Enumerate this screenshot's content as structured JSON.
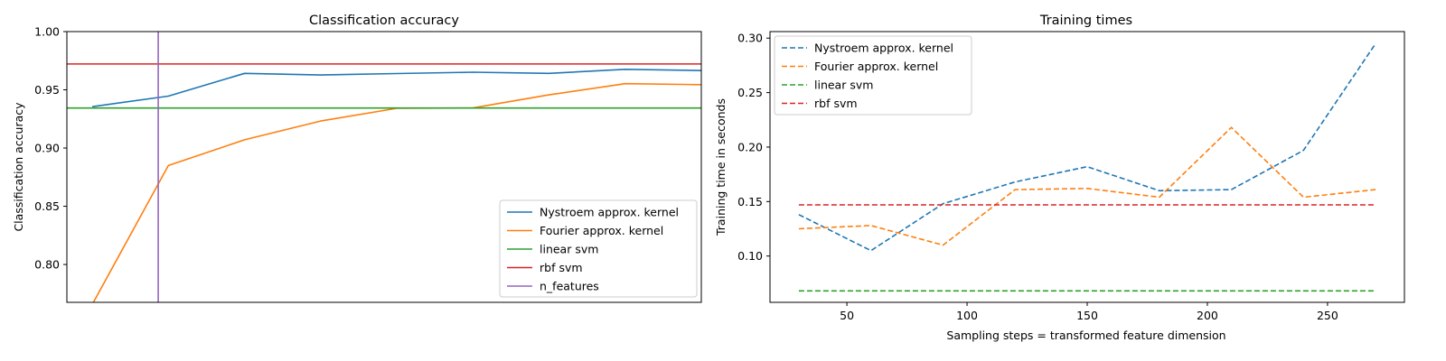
{
  "chart_data": [
    {
      "type": "line",
      "title": "Classification accuracy",
      "xlabel": "",
      "ylabel": "Classification accuracy",
      "xlim": [
        20,
        270
      ],
      "ylim": [
        0.7675,
        1.0
      ],
      "yticks": [
        0.8,
        0.85,
        0.9,
        0.95,
        1.0
      ],
      "ytick_labels": [
        "0.80",
        "0.85",
        "0.90",
        "0.95",
        "1.00"
      ],
      "x": [
        30,
        60,
        90,
        120,
        150,
        180,
        210,
        240,
        270
      ],
      "grid": false,
      "legend_position": "lower-right",
      "series": [
        {
          "name": "Nystroem approx. kernel",
          "style": "solid",
          "color": "#1f77b4",
          "values": [
            0.9355,
            0.9446,
            0.9641,
            0.9627,
            0.964,
            0.9651,
            0.9641,
            0.9676,
            0.9665
          ]
        },
        {
          "name": "Fourier approx. kernel",
          "style": "solid",
          "color": "#ff7f0e",
          "values": [
            0.7657,
            0.885,
            0.9071,
            0.9232,
            0.9341,
            0.9344,
            0.9457,
            0.9553,
            0.9544
          ]
        },
        {
          "name": "linear svm",
          "style": "solid",
          "color": "#2ca02c",
          "values": [
            0.9344,
            0.9344,
            0.9344,
            0.9344,
            0.9344,
            0.9344,
            0.9344,
            0.9344,
            0.9344
          ]
        },
        {
          "name": "rbf svm",
          "style": "solid",
          "color": "#d62728",
          "values": [
            0.9722,
            0.9722,
            0.9722,
            0.9722,
            0.9722,
            0.9722,
            0.9722,
            0.9722,
            0.9722
          ]
        }
      ],
      "vlines": [
        {
          "name": "n_features",
          "x": 56,
          "color": "#9467bd"
        }
      ]
    },
    {
      "type": "line",
      "title": "Training times",
      "xlabel": "Sampling steps = transformed feature dimension",
      "ylabel": "Training time in seconds",
      "xlim": [
        18,
        282
      ],
      "ylim": [
        0.0575,
        0.306
      ],
      "xticks": [
        50,
        100,
        150,
        200,
        250
      ],
      "xtick_labels": [
        "50",
        "100",
        "150",
        "200",
        "250"
      ],
      "yticks": [
        0.1,
        0.15,
        0.2,
        0.25,
        0.3
      ],
      "ytick_labels": [
        "0.10",
        "0.15",
        "0.20",
        "0.25",
        "0.30"
      ],
      "x": [
        30,
        60,
        90,
        120,
        150,
        180,
        210,
        240,
        270
      ],
      "grid": false,
      "legend_position": "upper-left",
      "series": [
        {
          "name": "Nystroem approx. kernel",
          "style": "dashed",
          "color": "#1f77b4",
          "values": [
            0.138,
            0.105,
            0.148,
            0.168,
            0.182,
            0.16,
            0.161,
            0.197,
            0.295
          ]
        },
        {
          "name": "Fourier approx. kernel",
          "style": "dashed",
          "color": "#ff7f0e",
          "values": [
            0.125,
            0.128,
            0.11,
            0.161,
            0.162,
            0.154,
            0.218,
            0.154,
            0.161
          ]
        },
        {
          "name": "linear svm",
          "style": "dashed",
          "color": "#2ca02c",
          "values": [
            0.068,
            0.068,
            0.068,
            0.068,
            0.068,
            0.068,
            0.068,
            0.068,
            0.068
          ]
        },
        {
          "name": "rbf svm",
          "style": "dashed",
          "color": "#d62728",
          "values": [
            0.147,
            0.147,
            0.147,
            0.147,
            0.147,
            0.147,
            0.147,
            0.147,
            0.147
          ]
        }
      ]
    }
  ]
}
